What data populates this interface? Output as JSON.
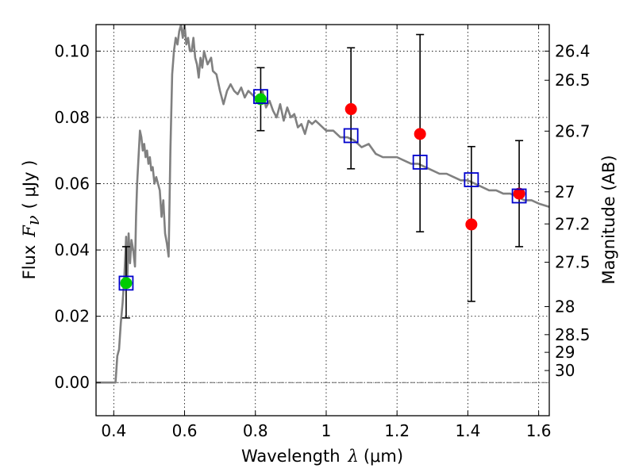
{
  "chart_data": {
    "type": "scatter",
    "xlabel": "Wavelength",
    "xlabel_symbol": "λ",
    "xlabel_unit": "(μm)",
    "ylabel": "Flux",
    "ylabel_symbol": "F",
    "ylabel_subscript": "ν",
    "ylabel_unit": "( μJy )",
    "y2label": "Magnitude (AB)",
    "xlim": [
      0.35,
      1.63
    ],
    "ylim": [
      -0.01,
      0.108
    ],
    "grid": true,
    "zero_line": true,
    "x_ticks": [
      {
        "value": 0.4,
        "label": "0.4"
      },
      {
        "value": 0.6,
        "label": "0.6"
      },
      {
        "value": 0.8,
        "label": "0.8"
      },
      {
        "value": 1.0,
        "label": "1"
      },
      {
        "value": 1.2,
        "label": "1.2"
      },
      {
        "value": 1.4,
        "label": "1.4"
      },
      {
        "value": 1.6,
        "label": "1.6"
      }
    ],
    "y_ticks": [
      {
        "value": 0.0,
        "label": "0.00"
      },
      {
        "value": 0.02,
        "label": "0.02"
      },
      {
        "value": 0.04,
        "label": "0.04"
      },
      {
        "value": 0.06,
        "label": "0.06"
      },
      {
        "value": 0.08,
        "label": "0.08"
      },
      {
        "value": 0.1,
        "label": "0.10"
      }
    ],
    "mag_ticks": [
      {
        "value": 26.4,
        "label": "26.4"
      },
      {
        "value": 26.5,
        "label": "26.5"
      },
      {
        "value": 26.7,
        "label": "26.7"
      },
      {
        "value": 27.0,
        "label": "27"
      },
      {
        "value": 27.2,
        "label": "27.2"
      },
      {
        "value": 27.5,
        "label": "27.5"
      },
      {
        "value": 28.0,
        "label": "28"
      },
      {
        "value": 28.5,
        "label": "28.5"
      },
      {
        "value": 29.0,
        "label": "29"
      },
      {
        "value": 30.0,
        "label": "30"
      }
    ],
    "model_sed": {
      "color": "#808080",
      "points": [
        [
          0.35,
          0.0
        ],
        [
          0.4,
          0.0
        ],
        [
          0.405,
          0.0
        ],
        [
          0.41,
          0.008
        ],
        [
          0.415,
          0.01
        ],
        [
          0.42,
          0.018
        ],
        [
          0.425,
          0.024
        ],
        [
          0.43,
          0.032
        ],
        [
          0.435,
          0.044
        ],
        [
          0.438,
          0.03
        ],
        [
          0.442,
          0.045
        ],
        [
          0.446,
          0.036
        ],
        [
          0.45,
          0.043
        ],
        [
          0.455,
          0.04
        ],
        [
          0.46,
          0.035
        ],
        [
          0.463,
          0.05
        ],
        [
          0.466,
          0.06
        ],
        [
          0.47,
          0.068
        ],
        [
          0.474,
          0.076
        ],
        [
          0.478,
          0.074
        ],
        [
          0.482,
          0.07
        ],
        [
          0.486,
          0.072
        ],
        [
          0.49,
          0.068
        ],
        [
          0.494,
          0.07
        ],
        [
          0.498,
          0.066
        ],
        [
          0.502,
          0.068
        ],
        [
          0.506,
          0.064
        ],
        [
          0.51,
          0.065
        ],
        [
          0.515,
          0.06
        ],
        [
          0.52,
          0.062
        ],
        [
          0.525,
          0.06
        ],
        [
          0.53,
          0.058
        ],
        [
          0.535,
          0.05
        ],
        [
          0.54,
          0.055
        ],
        [
          0.545,
          0.045
        ],
        [
          0.55,
          0.042
        ],
        [
          0.555,
          0.038
        ],
        [
          0.56,
          0.07
        ],
        [
          0.565,
          0.093
        ],
        [
          0.57,
          0.1
        ],
        [
          0.575,
          0.104
        ],
        [
          0.58,
          0.102
        ],
        [
          0.585,
          0.106
        ],
        [
          0.59,
          0.108
        ],
        [
          0.595,
          0.104
        ],
        [
          0.6,
          0.108
        ],
        [
          0.605,
          0.102
        ],
        [
          0.61,
          0.104
        ],
        [
          0.615,
          0.1
        ],
        [
          0.62,
          0.1
        ],
        [
          0.625,
          0.104
        ],
        [
          0.63,
          0.098
        ],
        [
          0.635,
          0.096
        ],
        [
          0.64,
          0.092
        ],
        [
          0.645,
          0.098
        ],
        [
          0.65,
          0.095
        ],
        [
          0.655,
          0.1
        ],
        [
          0.66,
          0.098
        ],
        [
          0.665,
          0.096
        ],
        [
          0.67,
          0.097
        ],
        [
          0.675,
          0.098
        ],
        [
          0.68,
          0.094
        ],
        [
          0.69,
          0.093
        ],
        [
          0.7,
          0.088
        ],
        [
          0.71,
          0.084
        ],
        [
          0.72,
          0.088
        ],
        [
          0.73,
          0.09
        ],
        [
          0.74,
          0.088
        ],
        [
          0.75,
          0.087
        ],
        [
          0.76,
          0.089
        ],
        [
          0.77,
          0.086
        ],
        [
          0.78,
          0.088
        ],
        [
          0.79,
          0.087
        ],
        [
          0.8,
          0.086
        ],
        [
          0.81,
          0.086
        ],
        [
          0.82,
          0.088
        ],
        [
          0.83,
          0.083
        ],
        [
          0.84,
          0.085
        ],
        [
          0.85,
          0.082
        ],
        [
          0.86,
          0.08
        ],
        [
          0.87,
          0.084
        ],
        [
          0.88,
          0.079
        ],
        [
          0.89,
          0.083
        ],
        [
          0.9,
          0.08
        ],
        [
          0.91,
          0.081
        ],
        [
          0.92,
          0.077
        ],
        [
          0.93,
          0.078
        ],
        [
          0.94,
          0.075
        ],
        [
          0.95,
          0.079
        ],
        [
          0.96,
          0.078
        ],
        [
          0.97,
          0.079
        ],
        [
          0.98,
          0.078
        ],
        [
          0.99,
          0.077
        ],
        [
          1.0,
          0.076
        ],
        [
          1.02,
          0.076
        ],
        [
          1.04,
          0.074
        ],
        [
          1.06,
          0.074
        ],
        [
          1.08,
          0.073
        ],
        [
          1.1,
          0.071
        ],
        [
          1.12,
          0.072
        ],
        [
          1.14,
          0.069
        ],
        [
          1.16,
          0.068
        ],
        [
          1.18,
          0.068
        ],
        [
          1.2,
          0.068
        ],
        [
          1.22,
          0.067
        ],
        [
          1.24,
          0.066
        ],
        [
          1.26,
          0.066
        ],
        [
          1.28,
          0.065
        ],
        [
          1.3,
          0.064
        ],
        [
          1.32,
          0.063
        ],
        [
          1.34,
          0.063
        ],
        [
          1.36,
          0.062
        ],
        [
          1.38,
          0.061
        ],
        [
          1.4,
          0.061
        ],
        [
          1.42,
          0.06
        ],
        [
          1.44,
          0.059
        ],
        [
          1.46,
          0.058
        ],
        [
          1.48,
          0.058
        ],
        [
          1.5,
          0.057
        ],
        [
          1.52,
          0.057
        ],
        [
          1.54,
          0.056
        ],
        [
          1.56,
          0.055
        ],
        [
          1.58,
          0.055
        ],
        [
          1.6,
          0.054
        ],
        [
          1.63,
          0.053
        ]
      ]
    },
    "model_photometry": {
      "color": "#0000cc",
      "x": [
        0.435,
        0.815,
        1.07,
        1.265,
        1.41,
        1.545
      ],
      "y": [
        0.03,
        0.0863,
        0.0745,
        0.0665,
        0.0612,
        0.0563
      ]
    },
    "optical_detections": {
      "color": "#00cc00",
      "x": [
        0.435,
        0.815
      ],
      "y": [
        0.03,
        0.0855
      ],
      "yerr_low": [
        0.0195,
        0.076
      ],
      "yerr_high": [
        0.041,
        0.095
      ]
    },
    "nir_detections": {
      "color": "#ff0000",
      "x": [
        1.07,
        1.265,
        1.41,
        1.545
      ],
      "y": [
        0.0825,
        0.075,
        0.0477,
        0.057
      ],
      "yerr_low": [
        0.0645,
        0.0455,
        0.0245,
        0.041
      ],
      "yerr_high": [
        0.101,
        0.105,
        0.0712,
        0.073
      ]
    }
  }
}
